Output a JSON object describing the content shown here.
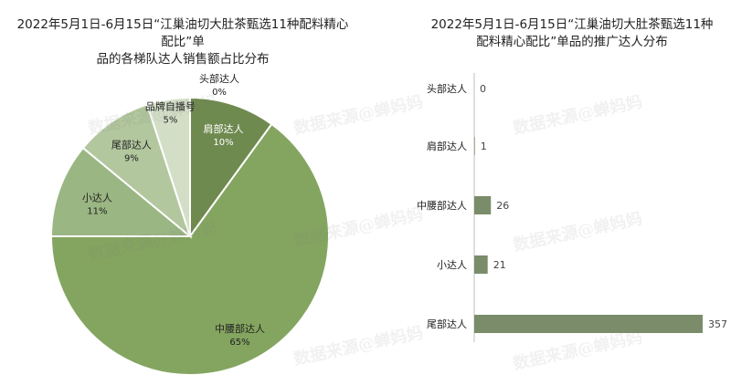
{
  "watermark": "数据来源@蝉妈妈",
  "chart_data": [
    {
      "type": "pie",
      "title": "2022年5月1日-6月15日“江巢油切大肚茶甄选11种配料精心配比”单品的各梯队达人销售额占比分布",
      "title_lines": [
        "2022年5月1日-6月15日“江巢油切大肚茶甄选11种配料精心配比”单",
        "品的各梯队达人销售额占比分布"
      ],
      "slices": [
        {
          "name": "头部达人",
          "label": "0%",
          "value": 0,
          "color": "#5c7a45"
        },
        {
          "name": "肩部达人",
          "label": "10%",
          "value": 10,
          "color": "#6f8a4f"
        },
        {
          "name": "中腰部达人",
          "label": "65%",
          "value": 65,
          "color": "#84a560"
        },
        {
          "name": "小达人",
          "label": "11%",
          "value": 11,
          "color": "#9ab683"
        },
        {
          "name": "尾部达人",
          "label": "9%",
          "value": 9,
          "color": "#b2c79e"
        },
        {
          "name": "品牌自播号",
          "label": "5%",
          "value": 5,
          "color": "#d3dec7"
        }
      ]
    },
    {
      "type": "bar",
      "orientation": "horizontal",
      "title": "2022年5月1日-6月15日“江巢油切大肚茶甄选11种配料精心配比”单品的推广达人分布",
      "title_lines": [
        "2022年5月1日-6月15日“江巢油切大肚茶甄选11种",
        "配料精心配比”单品的推广达人分布"
      ],
      "categories": [
        "头部达人",
        "肩部达人",
        "中腰部达人",
        "小达人",
        "尾部达人"
      ],
      "values": [
        0,
        1,
        26,
        21,
        357
      ],
      "color": "#7a8c6a",
      "xlim": [
        0,
        357
      ]
    }
  ]
}
